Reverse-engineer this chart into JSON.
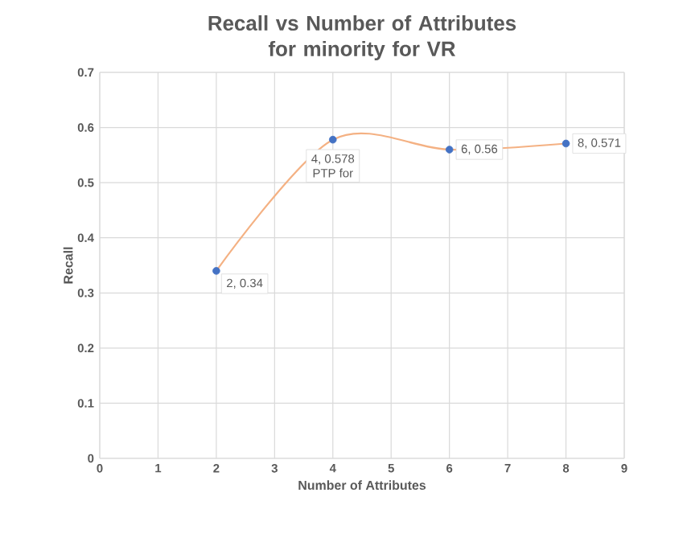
{
  "chart_data": {
    "type": "line",
    "title": "Recall vs  Number of Attributes\nfor minority for VR",
    "xlabel": "Number of Attributes",
    "ylabel": "Recall",
    "x": [
      2,
      4,
      6,
      8
    ],
    "series": [
      {
        "color": "#f4b183",
        "colors": [
          "#4472c4",
          "#4472c4",
          "#4472c4",
          "#4472c4"
        ],
        "values": [
          0.34,
          0.578,
          0.56,
          0.571
        ],
        "value_labels": [
          "2, 0.34",
          "4, 0.578",
          "6, 0.56",
          "8, 0.571"
        ]
      }
    ],
    "annotations": [
      {
        "text": "PTP for",
        "x": 4,
        "y": 0.578
      }
    ],
    "xlim": [
      0,
      9
    ],
    "xticks": [
      0,
      1,
      2,
      3,
      4,
      5,
      6,
      7,
      8,
      9
    ],
    "ylim": [
      0,
      0.7
    ],
    "yticks": [
      0,
      0.1,
      0.2,
      0.3,
      0.4,
      0.5,
      0.6,
      0.7
    ],
    "grid": true,
    "marker": "circle",
    "line_style": "solid"
  }
}
